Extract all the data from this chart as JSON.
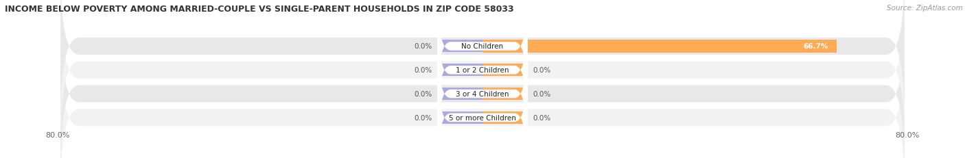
{
  "title": "INCOME BELOW POVERTY AMONG MARRIED-COUPLE VS SINGLE-PARENT HOUSEHOLDS IN ZIP CODE 58033",
  "source": "Source: ZipAtlas.com",
  "categories": [
    "No Children",
    "1 or 2 Children",
    "3 or 4 Children",
    "5 or more Children"
  ],
  "married_values": [
    0.0,
    0.0,
    0.0,
    0.0
  ],
  "single_values": [
    66.7,
    0.0,
    0.0,
    0.0
  ],
  "x_min": -80.0,
  "x_max": 80.0,
  "married_color": "#aaaadd",
  "single_color": "#ffaa55",
  "row_bg_color_odd": "#f2f2f2",
  "row_bg_color_even": "#e8e8e8",
  "title_fontsize": 9.5,
  "label_fontsize": 8,
  "tick_fontsize": 8,
  "married_bar_width": 8.0,
  "single_bar_width": 8.0
}
